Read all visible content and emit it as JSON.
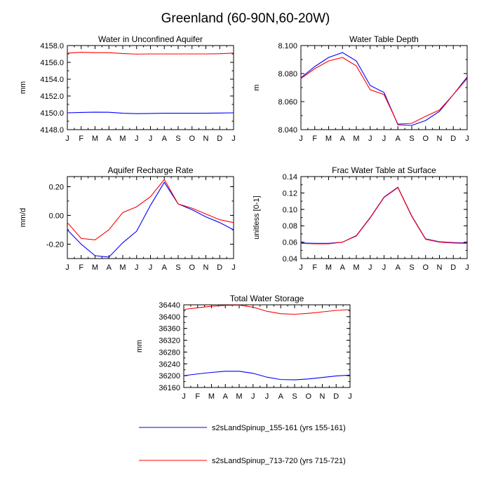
{
  "figure": {
    "title": "Greenland (60-90N,60-20W)"
  },
  "colors": {
    "series_1": "#0000ff",
    "series_2": "#ff0000"
  },
  "legend": [
    {
      "label": "s2sLandSpinup_155-161 (yrs 155-161)",
      "color": "#0000ff"
    },
    {
      "label": "s2sLandSpinup_713-720 (yrs 715-721)",
      "color": "#ff0000"
    }
  ],
  "chart_data": [
    {
      "type": "line",
      "title": "Water in Unconfined Aquifer",
      "ylabel": "mm",
      "xlabel": "",
      "categories": [
        "J",
        "F",
        "M",
        "A",
        "M",
        "J",
        "J",
        "A",
        "S",
        "O",
        "N",
        "D",
        "J"
      ],
      "ylim": [
        4148.0,
        4158.0
      ],
      "yticks": [
        4148.0,
        4150.0,
        4152.0,
        4154.0,
        4156.0,
        4158.0
      ],
      "ytick_labels": [
        "4148.0",
        "4150.0",
        "4152.0",
        "4154.0",
        "4156.0",
        "4158.0"
      ],
      "series": [
        {
          "name": "s2sLandSpinup_155-161 (yrs 155-161)",
          "color": "#0000ff",
          "values": [
            4150.0,
            4150.05,
            4150.08,
            4150.07,
            4149.95,
            4149.9,
            4149.92,
            4149.95,
            4149.95,
            4149.95,
            4149.95,
            4149.97,
            4150.0
          ]
        },
        {
          "name": "s2sLandSpinup_713-720 (yrs 715-721)",
          "color": "#ff0000",
          "values": [
            4157.1,
            4157.2,
            4157.15,
            4157.15,
            4157.05,
            4156.98,
            4157.0,
            4157.0,
            4157.0,
            4157.0,
            4157.0,
            4157.03,
            4157.1
          ]
        }
      ]
    },
    {
      "type": "line",
      "title": "Water Table Depth",
      "ylabel": "m",
      "xlabel": "",
      "categories": [
        "J",
        "F",
        "M",
        "A",
        "M",
        "J",
        "J",
        "A",
        "S",
        "O",
        "N",
        "D",
        "J"
      ],
      "ylim": [
        8.04,
        8.1
      ],
      "yticks": [
        8.04,
        8.06,
        8.08,
        8.1
      ],
      "ytick_labels": [
        "8.040",
        "8.060",
        "8.080",
        "8.100"
      ],
      "series": [
        {
          "name": "s2sLandSpinup_155-161 (yrs 155-161)",
          "color": "#0000ff",
          "values": [
            8.077,
            8.085,
            8.0915,
            8.095,
            8.089,
            8.0715,
            8.0665,
            8.0435,
            8.043,
            8.0465,
            8.053,
            8.065,
            8.0775
          ]
        },
        {
          "name": "s2sLandSpinup_713-720 (yrs 715-721)",
          "color": "#ff0000",
          "values": [
            8.0765,
            8.0835,
            8.089,
            8.0915,
            8.0855,
            8.0685,
            8.065,
            8.044,
            8.0445,
            8.0495,
            8.054,
            8.065,
            8.0765
          ]
        }
      ]
    },
    {
      "type": "line",
      "title": "Aquifer Recharge Rate",
      "ylabel": "mm/d",
      "xlabel": "",
      "categories": [
        "J",
        "F",
        "M",
        "A",
        "M",
        "J",
        "J",
        "A",
        "S",
        "O",
        "N",
        "D",
        "J"
      ],
      "ylim": [
        -0.3,
        0.27
      ],
      "yticks": [
        -0.2,
        0.0,
        0.2
      ],
      "ytick_labels": [
        "-0.20",
        "0.00",
        "0.20"
      ],
      "series": [
        {
          "name": "s2sLandSpinup_155-161 (yrs 155-161)",
          "color": "#0000ff",
          "values": [
            -0.1,
            -0.2,
            -0.28,
            -0.29,
            -0.19,
            -0.11,
            0.07,
            0.23,
            0.08,
            0.04,
            -0.01,
            -0.05,
            -0.1
          ]
        },
        {
          "name": "s2sLandSpinup_713-720 (yrs 715-721)",
          "color": "#ff0000",
          "values": [
            -0.05,
            -0.16,
            -0.17,
            -0.1,
            0.02,
            0.06,
            0.13,
            0.25,
            0.08,
            0.05,
            0.01,
            -0.03,
            -0.05
          ]
        }
      ]
    },
    {
      "type": "line",
      "title": "Frac Water Table at Surface",
      "ylabel": "unitless [0-1]",
      "xlabel": "",
      "categories": [
        "J",
        "F",
        "M",
        "A",
        "M",
        "J",
        "J",
        "A",
        "S",
        "O",
        "N",
        "D",
        "J"
      ],
      "ylim": [
        0.04,
        0.14
      ],
      "yticks": [
        0.04,
        0.06,
        0.08,
        0.1,
        0.12,
        0.14
      ],
      "ytick_labels": [
        "0.04",
        "0.06",
        "0.08",
        "0.10",
        "0.12",
        "0.14"
      ],
      "series": [
        {
          "name": "s2sLandSpinup_155-161 (yrs 155-161)",
          "color": "#0000ff",
          "values": [
            0.059,
            0.0585,
            0.0585,
            0.06,
            0.068,
            0.09,
            0.115,
            0.127,
            0.092,
            0.064,
            0.0605,
            0.0595,
            0.059
          ]
        },
        {
          "name": "s2sLandSpinup_713-720 (yrs 715-721)",
          "color": "#ff0000",
          "values": [
            0.0585,
            0.058,
            0.058,
            0.06,
            0.0675,
            0.0895,
            0.1145,
            0.1265,
            0.0915,
            0.0635,
            0.06,
            0.059,
            0.0585
          ]
        }
      ]
    },
    {
      "type": "line",
      "title": "Total Water Storage",
      "ylabel": "mm",
      "xlabel": "",
      "categories": [
        "J",
        "F",
        "M",
        "A",
        "M",
        "J",
        "J",
        "A",
        "S",
        "O",
        "N",
        "D",
        "J"
      ],
      "ylim": [
        36160,
        36440
      ],
      "yticks": [
        36160,
        36200,
        36240,
        36280,
        36320,
        36360,
        36400,
        36440
      ],
      "ytick_labels": [
        "36160",
        "36200",
        "36240",
        "36280",
        "36320",
        "36360",
        "36400",
        "36440"
      ],
      "series": [
        {
          "name": "s2sLandSpinup_155-161 (yrs 155-161)",
          "color": "#0000ff",
          "values": [
            36200,
            36206,
            36211,
            36215,
            36215,
            36208,
            36195,
            36187,
            36186,
            36189,
            36194,
            36199,
            36202
          ]
        },
        {
          "name": "s2sLandSpinup_713-720 (yrs 715-721)",
          "color": "#ff0000",
          "values": [
            36424,
            36430,
            36435,
            36438,
            36439,
            36432,
            36418,
            36410,
            36408,
            36411,
            36416,
            36421,
            36424
          ]
        }
      ]
    }
  ]
}
